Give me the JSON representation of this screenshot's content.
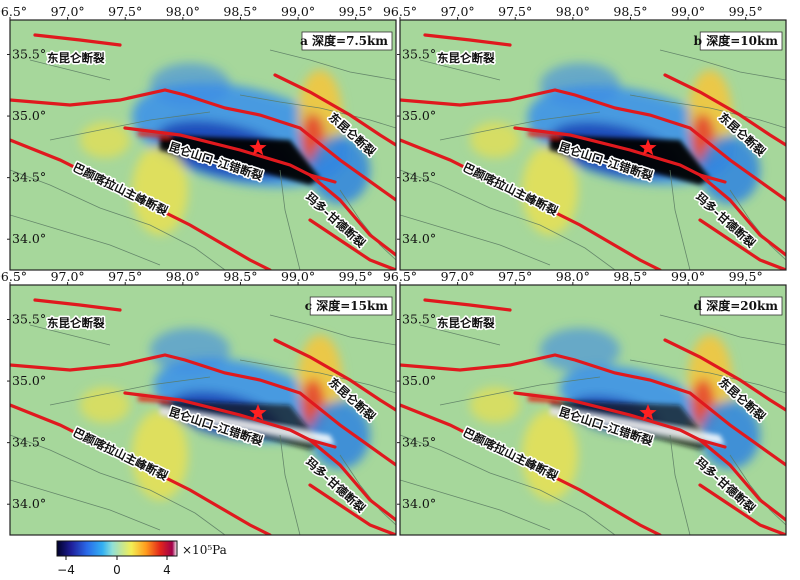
{
  "panels": [
    {
      "id": "a",
      "title": "a 深度=7.5km"
    },
    {
      "id": "b",
      "title": "b 深度=10km"
    },
    {
      "id": "c",
      "title": "c 深度=15km"
    },
    {
      "id": "d",
      "title": "d 深度=20km"
    }
  ],
  "axes": {
    "x_ticks": [
      "96.5°",
      "97.0°",
      "97.5°",
      "98.0°",
      "98.5°",
      "99.0°",
      "99.5°"
    ],
    "x_values": [
      96.5,
      97.0,
      97.5,
      98.0,
      98.5,
      99.0,
      99.5
    ],
    "y_ticks": [
      "35.5°",
      "35.0°",
      "34.5°",
      "34.0°"
    ],
    "y_values": [
      35.5,
      35.0,
      34.5,
      34.0
    ],
    "lon_range": [
      96.5,
      99.85
    ],
    "lat_range": [
      33.75,
      35.78
    ]
  },
  "fault_labels": {
    "east_kunlun_nw": "东昆仑断裂",
    "east_kunlun_ne": "东昆仑断裂",
    "kunlun_jiangcuo": "昆仑山口–江错断裂",
    "bayan_har": "巴颜喀拉山主峰断裂",
    "maduo_gande": "玛多–甘德断裂"
  },
  "colorbar": {
    "unit": "×10⁵Pa",
    "ticks": [
      "−4",
      "0",
      "4"
    ],
    "tick_values": [
      -4,
      0,
      4
    ],
    "range": [
      -5,
      5
    ],
    "colors": [
      "#00002a",
      "#1f1f9a",
      "#2a6ae8",
      "#33b0f2",
      "#8fe0d8",
      "#b7e4a6",
      "#f2ee55",
      "#ff9d1e",
      "#e3261b",
      "#a0004a",
      "#ffffff"
    ]
  },
  "colors": {
    "background_field": "#a6d79b",
    "fault_red": "#e0191e",
    "fault_gray": "#5a7a62",
    "epicenter_star": "#ff2020"
  },
  "marker": "epicenter-star-icon"
}
